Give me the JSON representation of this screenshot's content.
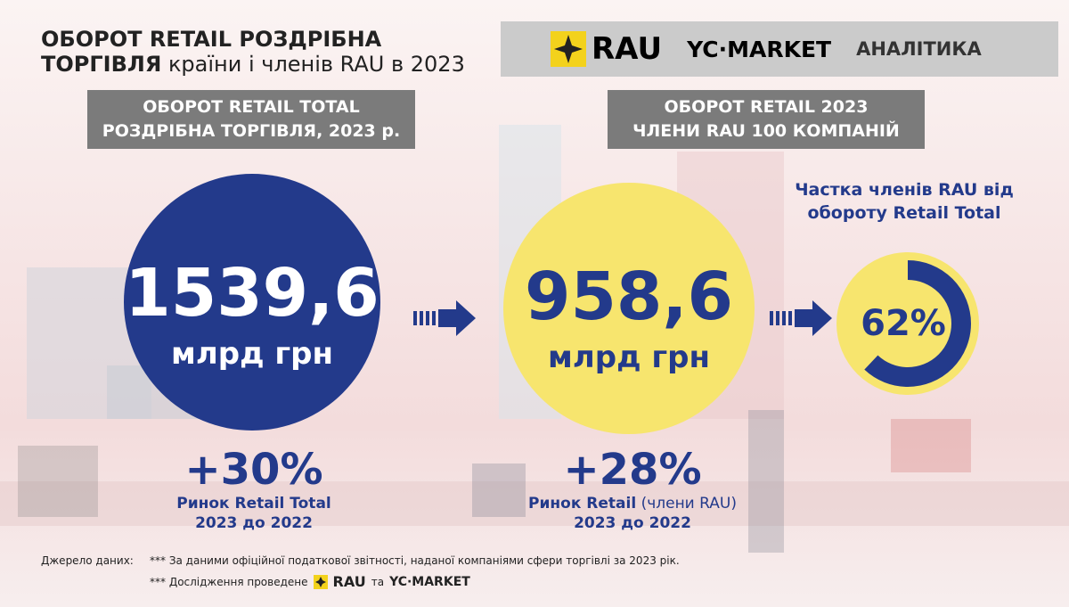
{
  "header": {
    "title_line1": "ОБОРОТ RETAIL РОЗДРІБНА",
    "title_line2_bold": "ТОРГІВЛЯ",
    "title_line2_rest": "країни і членів RAU в 2023",
    "brand_rau": "RAU",
    "brand_yc": "YC·MARKET",
    "brand_tag": "АНАЛІТИКА"
  },
  "left": {
    "box_line1": "ОБОРОТ RETAIL TOTAL",
    "box_line2": "РОЗДРІБНА ТОРГІВЛЯ, 2023 р.",
    "amount": "1539,6",
    "unit": "млрд грн",
    "growth": "+30%",
    "note_line1": "Ринок Retail Total",
    "note_line2": "2023 до 2022"
  },
  "right": {
    "box_line1": "ОБОРОТ RETAIL 2023",
    "box_line2": "ЧЛЕНИ RAU 100 КОМПАНІЙ",
    "amount": "958,6",
    "unit": "млрд грн",
    "growth": "+28%",
    "note_bold": "Ринок Retail",
    "note_light": "(члени RAU)",
    "note_line2": "2023 до 2022"
  },
  "share": {
    "title_line1": "Частка членів RAU від",
    "title_line2": "обороту Retail Total",
    "value": 62,
    "label": "62%"
  },
  "footer": {
    "source_label": "Джерело даних:",
    "source_text": "*** За даними офіційної податкової звітності, наданої компаніями сфери торгівлі за 2023 рік.",
    "study_text": "*** Дослідження проведене",
    "study_rau": "RAU",
    "study_and": "та",
    "study_yc": "YC·MARKET"
  }
}
